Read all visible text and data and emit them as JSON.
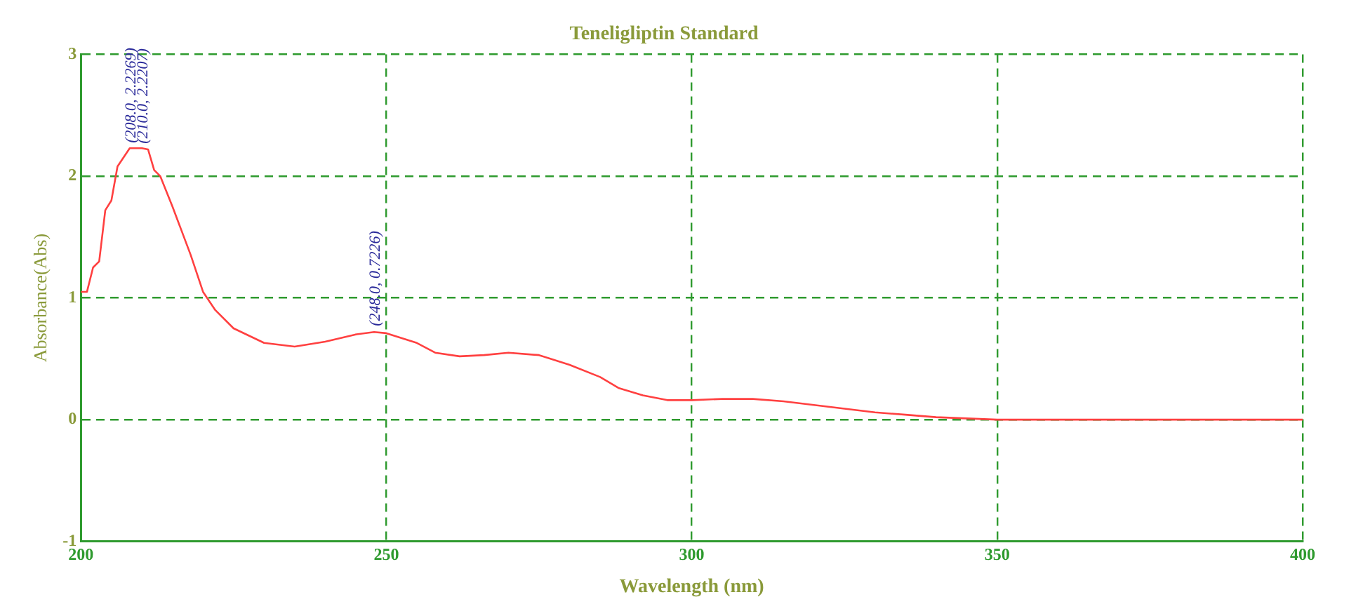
{
  "chart_data": {
    "type": "line",
    "title": "Teneligliptin Standard",
    "xlabel": "Wavelength (nm)",
    "ylabel": "Absorbance(Abs)",
    "x": [
      200,
      201,
      202,
      203,
      204,
      205,
      206,
      208,
      210,
      211,
      212,
      213,
      215,
      218,
      220,
      222,
      225,
      230,
      235,
      240,
      245,
      248,
      250,
      255,
      258,
      262,
      266,
      270,
      275,
      280,
      285,
      288,
      292,
      296,
      300,
      305,
      310,
      315,
      320,
      325,
      330,
      335,
      340,
      345,
      350,
      360,
      380,
      400
    ],
    "series": [
      {
        "color": "#ff4040",
        "values": [
          1.05,
          1.05,
          1.25,
          1.3,
          1.72,
          1.8,
          2.08,
          2.23,
          2.23,
          2.22,
          2.05,
          2.0,
          1.75,
          1.35,
          1.05,
          0.9,
          0.75,
          0.63,
          0.6,
          0.64,
          0.7,
          0.72,
          0.71,
          0.63,
          0.55,
          0.52,
          0.53,
          0.55,
          0.53,
          0.45,
          0.35,
          0.26,
          0.2,
          0.16,
          0.16,
          0.17,
          0.17,
          0.15,
          0.12,
          0.09,
          0.06,
          0.04,
          0.02,
          0.01,
          0.0,
          0.0,
          0.0,
          0.0
        ]
      }
    ],
    "annotations": [
      {
        "text": "(208.0, 2.2269)",
        "x": 208,
        "y": 2.2269
      },
      {
        "text": "(210.0, 2.2207)",
        "x": 210,
        "y": 2.2207
      },
      {
        "text": "(248.0, 0.7226)",
        "x": 248,
        "y": 0.7226
      }
    ],
    "xlim": [
      200,
      400
    ],
    "xticks": [
      200,
      250,
      300,
      350,
      400
    ],
    "ylim": [
      -1,
      3
    ],
    "yticks": [
      -1,
      0,
      1,
      2,
      3
    ],
    "grid": true,
    "legend": false,
    "marker": "none",
    "line_style": "solid"
  }
}
